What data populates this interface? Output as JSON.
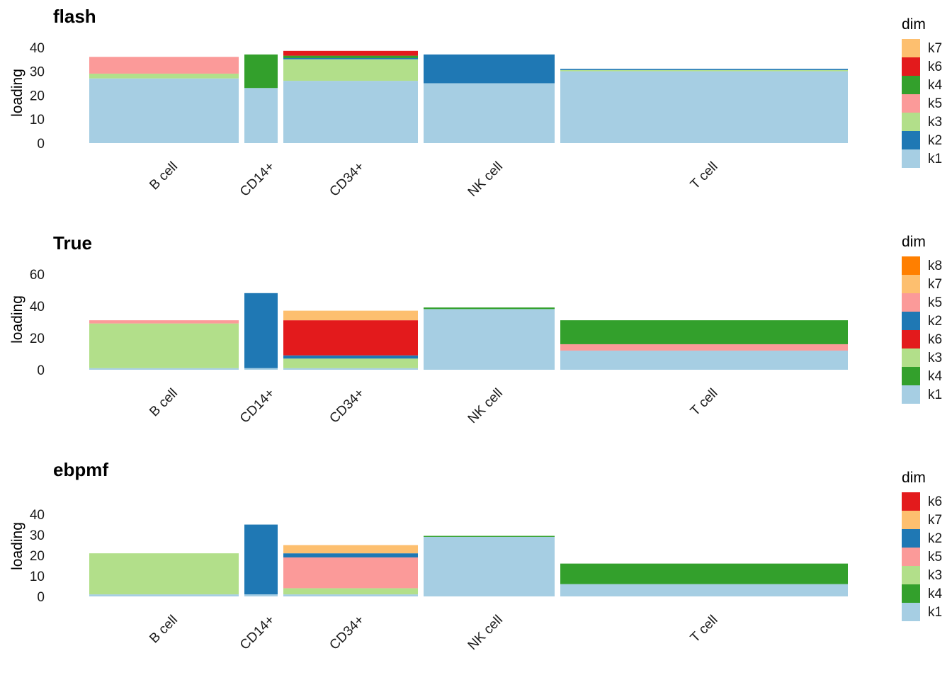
{
  "colors": {
    "k1": "#A6CEE3",
    "k2": "#1F78B4",
    "k3": "#B2DF8A",
    "k4": "#33A02C",
    "k5": "#FB9A99",
    "k6": "#E31A1C",
    "k7": "#FDBF6F",
    "k8": "#FF7F00"
  },
  "chart_data": [
    {
      "type": "bar",
      "stacked": true,
      "title": "flash",
      "ylabel": "loading",
      "xlabel": "",
      "ylim": [
        0,
        42
      ],
      "yticks": [
        0,
        10,
        20,
        30,
        40
      ],
      "legend_title": "dim",
      "legend": [
        "k7",
        "k6",
        "k4",
        "k5",
        "k3",
        "k2",
        "k1"
      ],
      "categories": [
        "B cell",
        "CD14+",
        "CD34+",
        "NK cell",
        "T cell"
      ],
      "series": [
        {
          "name": "k1",
          "values": [
            27,
            23,
            26,
            25,
            30
          ]
        },
        {
          "name": "k3",
          "values": [
            2,
            0,
            9,
            0,
            0.5
          ]
        },
        {
          "name": "k5",
          "values": [
            7,
            0,
            0,
            0,
            0
          ]
        },
        {
          "name": "k2",
          "values": [
            0,
            0,
            0.5,
            12,
            0.5
          ]
        },
        {
          "name": "k4",
          "values": [
            0,
            14,
            1,
            0,
            0
          ]
        },
        {
          "name": "k6",
          "values": [
            0,
            0,
            2,
            0,
            0
          ]
        },
        {
          "name": "k7",
          "values": [
            0,
            0,
            0,
            0,
            0
          ]
        }
      ]
    },
    {
      "type": "bar",
      "stacked": true,
      "title": "True",
      "ylabel": "loading",
      "xlabel": "",
      "ylim": [
        0,
        63
      ],
      "yticks": [
        0,
        20,
        40,
        60
      ],
      "legend_title": "dim",
      "legend": [
        "k8",
        "k7",
        "k5",
        "k2",
        "k6",
        "k3",
        "k4",
        "k1"
      ],
      "categories": [
        "B cell",
        "CD14+",
        "CD34+",
        "NK cell",
        "T cell"
      ],
      "series": [
        {
          "name": "k1",
          "values": [
            1,
            1,
            1,
            38,
            12
          ]
        },
        {
          "name": "k3",
          "values": [
            28,
            0,
            6,
            0,
            0
          ]
        },
        {
          "name": "k5",
          "values": [
            2,
            0,
            0,
            0,
            4
          ]
        },
        {
          "name": "k4",
          "values": [
            0,
            0,
            0,
            1,
            15
          ]
        },
        {
          "name": "k2",
          "values": [
            0,
            47,
            2,
            0,
            0
          ]
        },
        {
          "name": "k6",
          "values": [
            0,
            0,
            22,
            0,
            0
          ]
        },
        {
          "name": "k7",
          "values": [
            0,
            0,
            6,
            0,
            0
          ]
        },
        {
          "name": "k8",
          "values": [
            0,
            0,
            0,
            0,
            0
          ]
        }
      ]
    },
    {
      "type": "bar",
      "stacked": true,
      "title": "ebpmf",
      "ylabel": "loading",
      "xlabel": "",
      "ylim": [
        0,
        49
      ],
      "yticks": [
        0,
        10,
        20,
        30,
        40
      ],
      "legend_title": "dim",
      "legend": [
        "k6",
        "k7",
        "k2",
        "k5",
        "k3",
        "k4",
        "k1"
      ],
      "categories": [
        "B cell",
        "CD14+",
        "CD34+",
        "NK cell",
        "T cell"
      ],
      "series": [
        {
          "name": "k1",
          "values": [
            1,
            1,
            1,
            29,
            6
          ]
        },
        {
          "name": "k3",
          "values": [
            20,
            0,
            3,
            0,
            0
          ]
        },
        {
          "name": "k4",
          "values": [
            0,
            0,
            0,
            0.5,
            10
          ]
        },
        {
          "name": "k5",
          "values": [
            0,
            0,
            15,
            0,
            0
          ]
        },
        {
          "name": "k2",
          "values": [
            0,
            34,
            2,
            0,
            0
          ]
        },
        {
          "name": "k7",
          "values": [
            0,
            0,
            4,
            0,
            0
          ]
        },
        {
          "name": "k6",
          "values": [
            0,
            0,
            0,
            0,
            0
          ]
        }
      ]
    }
  ]
}
